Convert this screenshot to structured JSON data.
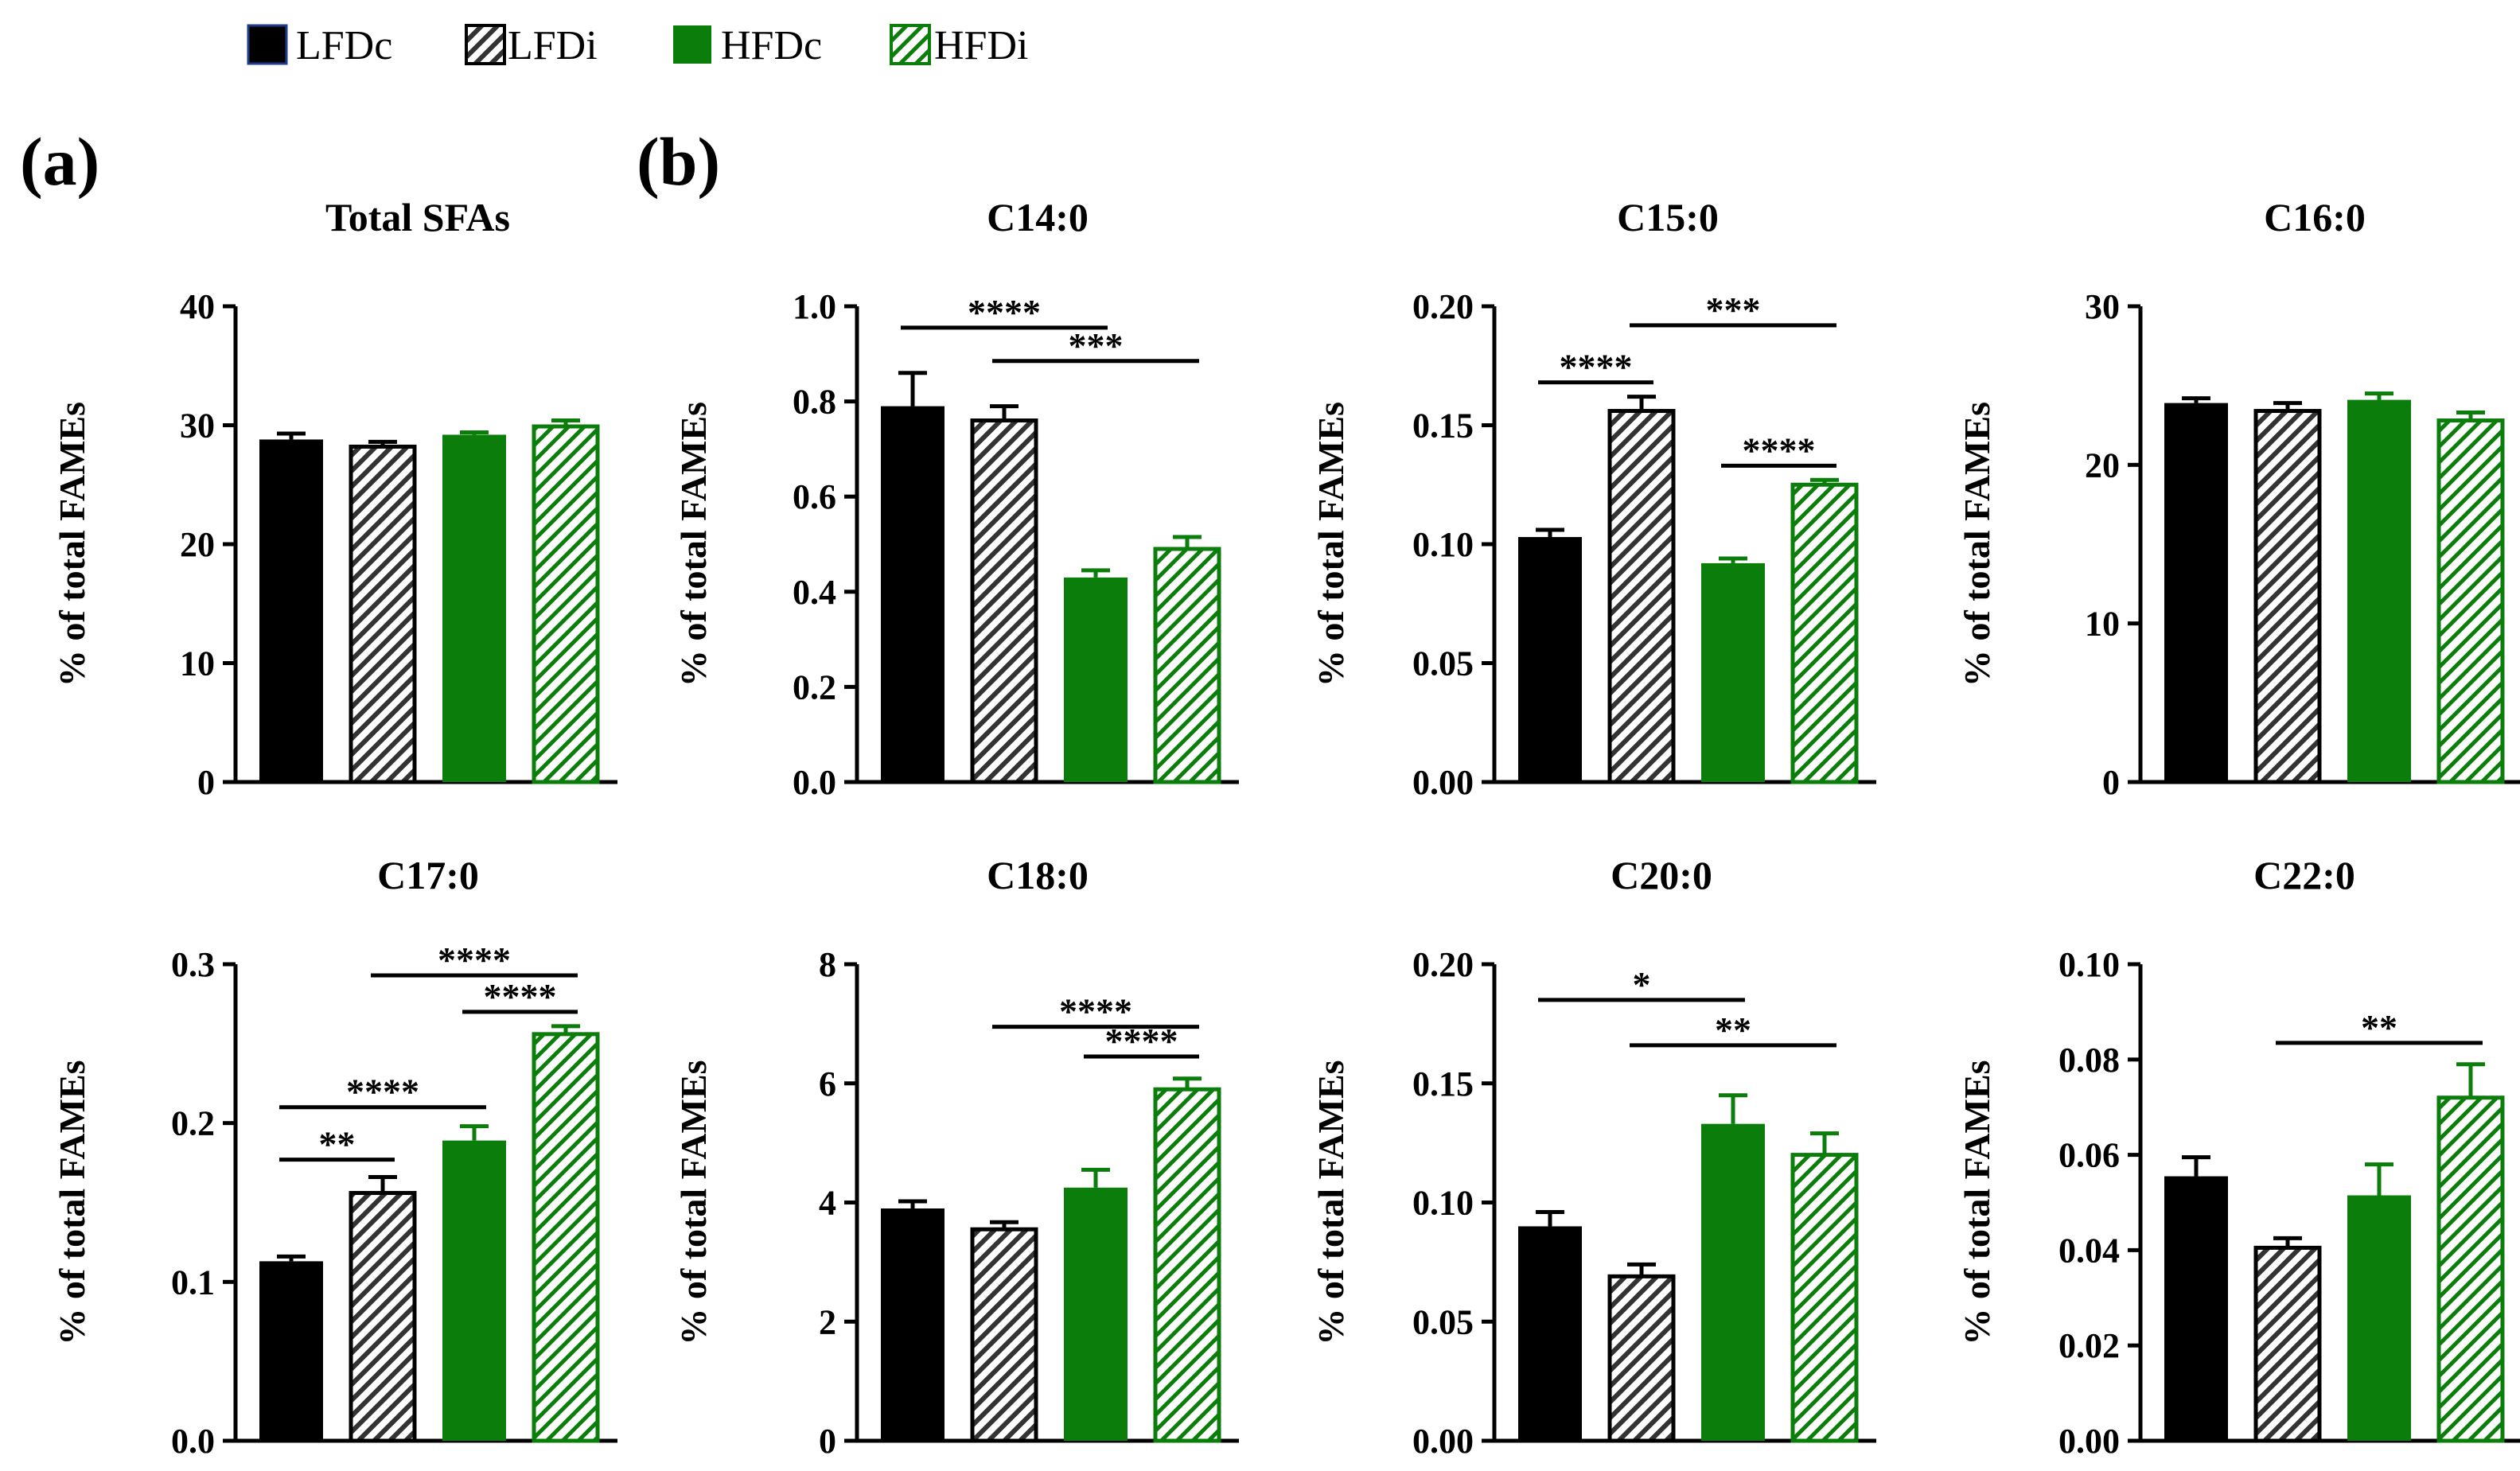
{
  "legend": [
    {
      "label": "LFDc",
      "fill": "solid",
      "color": "#000000"
    },
    {
      "label": "LFDi",
      "fill": "hatch",
      "color": "#000000"
    },
    {
      "label": "HFDc",
      "fill": "solid",
      "color": "#0a7d0a"
    },
    {
      "label": "HFDi",
      "fill": "hatch",
      "color": "#0a7d0a"
    }
  ],
  "colors": {
    "black": "#000000",
    "hatch_gray": "#333333",
    "green": "#0a7d0a",
    "hatch_green": "#0a7d0a"
  },
  "panel_labels": {
    "a": "(a)",
    "b": "(b)"
  },
  "chart_data": [
    {
      "type": "bar",
      "title": "Total SFAs",
      "ylabel": "% of total FAMEs",
      "categories": [
        "LFDc",
        "LFDi",
        "HFDc",
        "HFDi"
      ],
      "ylim": [
        0,
        40
      ],
      "yticks": [
        "0",
        "10",
        "20",
        "30",
        "40"
      ],
      "values": [
        28.8,
        28.2,
        29.2,
        29.9
      ],
      "errors": [
        0.5,
        0.4,
        0.2,
        0.5
      ],
      "significance": []
    },
    {
      "type": "bar",
      "title": "C14:0",
      "ylabel": "% of total FAMEs",
      "categories": [
        "LFDc",
        "LFDi",
        "HFDc",
        "HFDi"
      ],
      "ylim": [
        0,
        1.0
      ],
      "yticks": [
        "0.0",
        "0.2",
        "0.4",
        "0.6",
        "0.8",
        "1.0"
      ],
      "values": [
        0.79,
        0.76,
        0.43,
        0.49
      ],
      "errors": [
        0.07,
        0.03,
        0.015,
        0.025
      ],
      "significance": [
        {
          "from": 0,
          "to": 2,
          "y": 0.955,
          "label": "****"
        },
        {
          "from": 1,
          "to": 3,
          "y": 0.885,
          "label": "***"
        }
      ]
    },
    {
      "type": "bar",
      "title": "C15:0",
      "ylabel": "% of total FAMEs",
      "categories": [
        "LFDc",
        "LFDi",
        "HFDc",
        "HFDi"
      ],
      "ylim": [
        0,
        0.2
      ],
      "yticks": [
        "0.00",
        "0.05",
        "0.10",
        "0.15",
        "0.20"
      ],
      "values": [
        0.103,
        0.156,
        0.092,
        0.125
      ],
      "errors": [
        0.003,
        0.006,
        0.002,
        0.002
      ],
      "significance": [
        {
          "from": 0,
          "to": 1,
          "y": 0.168,
          "label": "****"
        },
        {
          "from": 1,
          "to": 3,
          "y": 0.192,
          "label": "***"
        },
        {
          "from": 2,
          "to": 3,
          "y": 0.133,
          "label": "****"
        }
      ]
    },
    {
      "type": "bar",
      "title": "C16:0",
      "ylabel": "% of total FAMEs",
      "categories": [
        "LFDc",
        "LFDi",
        "HFDc",
        "HFDi"
      ],
      "ylim": [
        0,
        30
      ],
      "yticks": [
        "0",
        "10",
        "20",
        "30"
      ],
      "values": [
        23.9,
        23.4,
        24.1,
        22.8
      ],
      "errors": [
        0.3,
        0.5,
        0.4,
        0.5
      ],
      "significance": []
    },
    {
      "type": "bar",
      "title": "C17:0",
      "ylabel": "% of total FAMEs",
      "categories": [
        "LFDc",
        "LFDi",
        "HFDc",
        "HFDi"
      ],
      "ylim": [
        0,
        0.3
      ],
      "yticks": [
        "0.0",
        "0.1",
        "0.2",
        "0.3"
      ],
      "values": [
        0.113,
        0.156,
        0.189,
        0.256
      ],
      "errors": [
        0.003,
        0.01,
        0.009,
        0.005
      ],
      "significance": [
        {
          "from": 0,
          "to": 1,
          "y": 0.177,
          "label": "**"
        },
        {
          "from": 0,
          "to": 2,
          "y": 0.21,
          "label": "****"
        },
        {
          "from": 2,
          "to": 3,
          "y": 0.27,
          "label": "****"
        },
        {
          "from": 1,
          "to": 3,
          "y": 0.293,
          "label": "****"
        }
      ]
    },
    {
      "type": "bar",
      "title": "C18:0",
      "ylabel": "% of total FAMEs",
      "categories": [
        "LFDc",
        "LFDi",
        "HFDc",
        "HFDi"
      ],
      "ylim": [
        0,
        8
      ],
      "yticks": [
        "0",
        "2",
        "4",
        "6",
        "8"
      ],
      "values": [
        3.9,
        3.55,
        4.25,
        5.9
      ],
      "errors": [
        0.12,
        0.12,
        0.3,
        0.18
      ],
      "significance": [
        {
          "from": 1,
          "to": 3,
          "y": 6.95,
          "label": "****"
        },
        {
          "from": 2,
          "to": 3,
          "y": 6.45,
          "label": "****"
        }
      ]
    },
    {
      "type": "bar",
      "title": "C20:0",
      "ylabel": "% of total FAMEs",
      "categories": [
        "LFDc",
        "LFDi",
        "HFDc",
        "HFDi"
      ],
      "ylim": [
        0,
        0.2
      ],
      "yticks": [
        "0.00",
        "0.05",
        "0.10",
        "0.15",
        "0.20"
      ],
      "values": [
        0.09,
        0.069,
        0.133,
        0.12
      ],
      "errors": [
        0.006,
        0.005,
        0.012,
        0.009
      ],
      "significance": [
        {
          "from": 0,
          "to": 2,
          "y": 0.185,
          "label": "*"
        },
        {
          "from": 1,
          "to": 3,
          "y": 0.166,
          "label": "**"
        }
      ]
    },
    {
      "type": "bar",
      "title": "C22:0",
      "ylabel": "% of total FAMEs",
      "categories": [
        "LFDc",
        "LFDi",
        "HFDc",
        "HFDi"
      ],
      "ylim": [
        0,
        0.1
      ],
      "yticks": [
        "0.00",
        "0.02",
        "0.04",
        "0.06",
        "0.08",
        "0.10"
      ],
      "values": [
        0.0555,
        0.0405,
        0.0515,
        0.072
      ],
      "errors": [
        0.004,
        0.002,
        0.0065,
        0.007
      ],
      "significance": [
        {
          "from": 1,
          "to": 3,
          "y": 0.0835,
          "label": "**"
        }
      ]
    }
  ]
}
